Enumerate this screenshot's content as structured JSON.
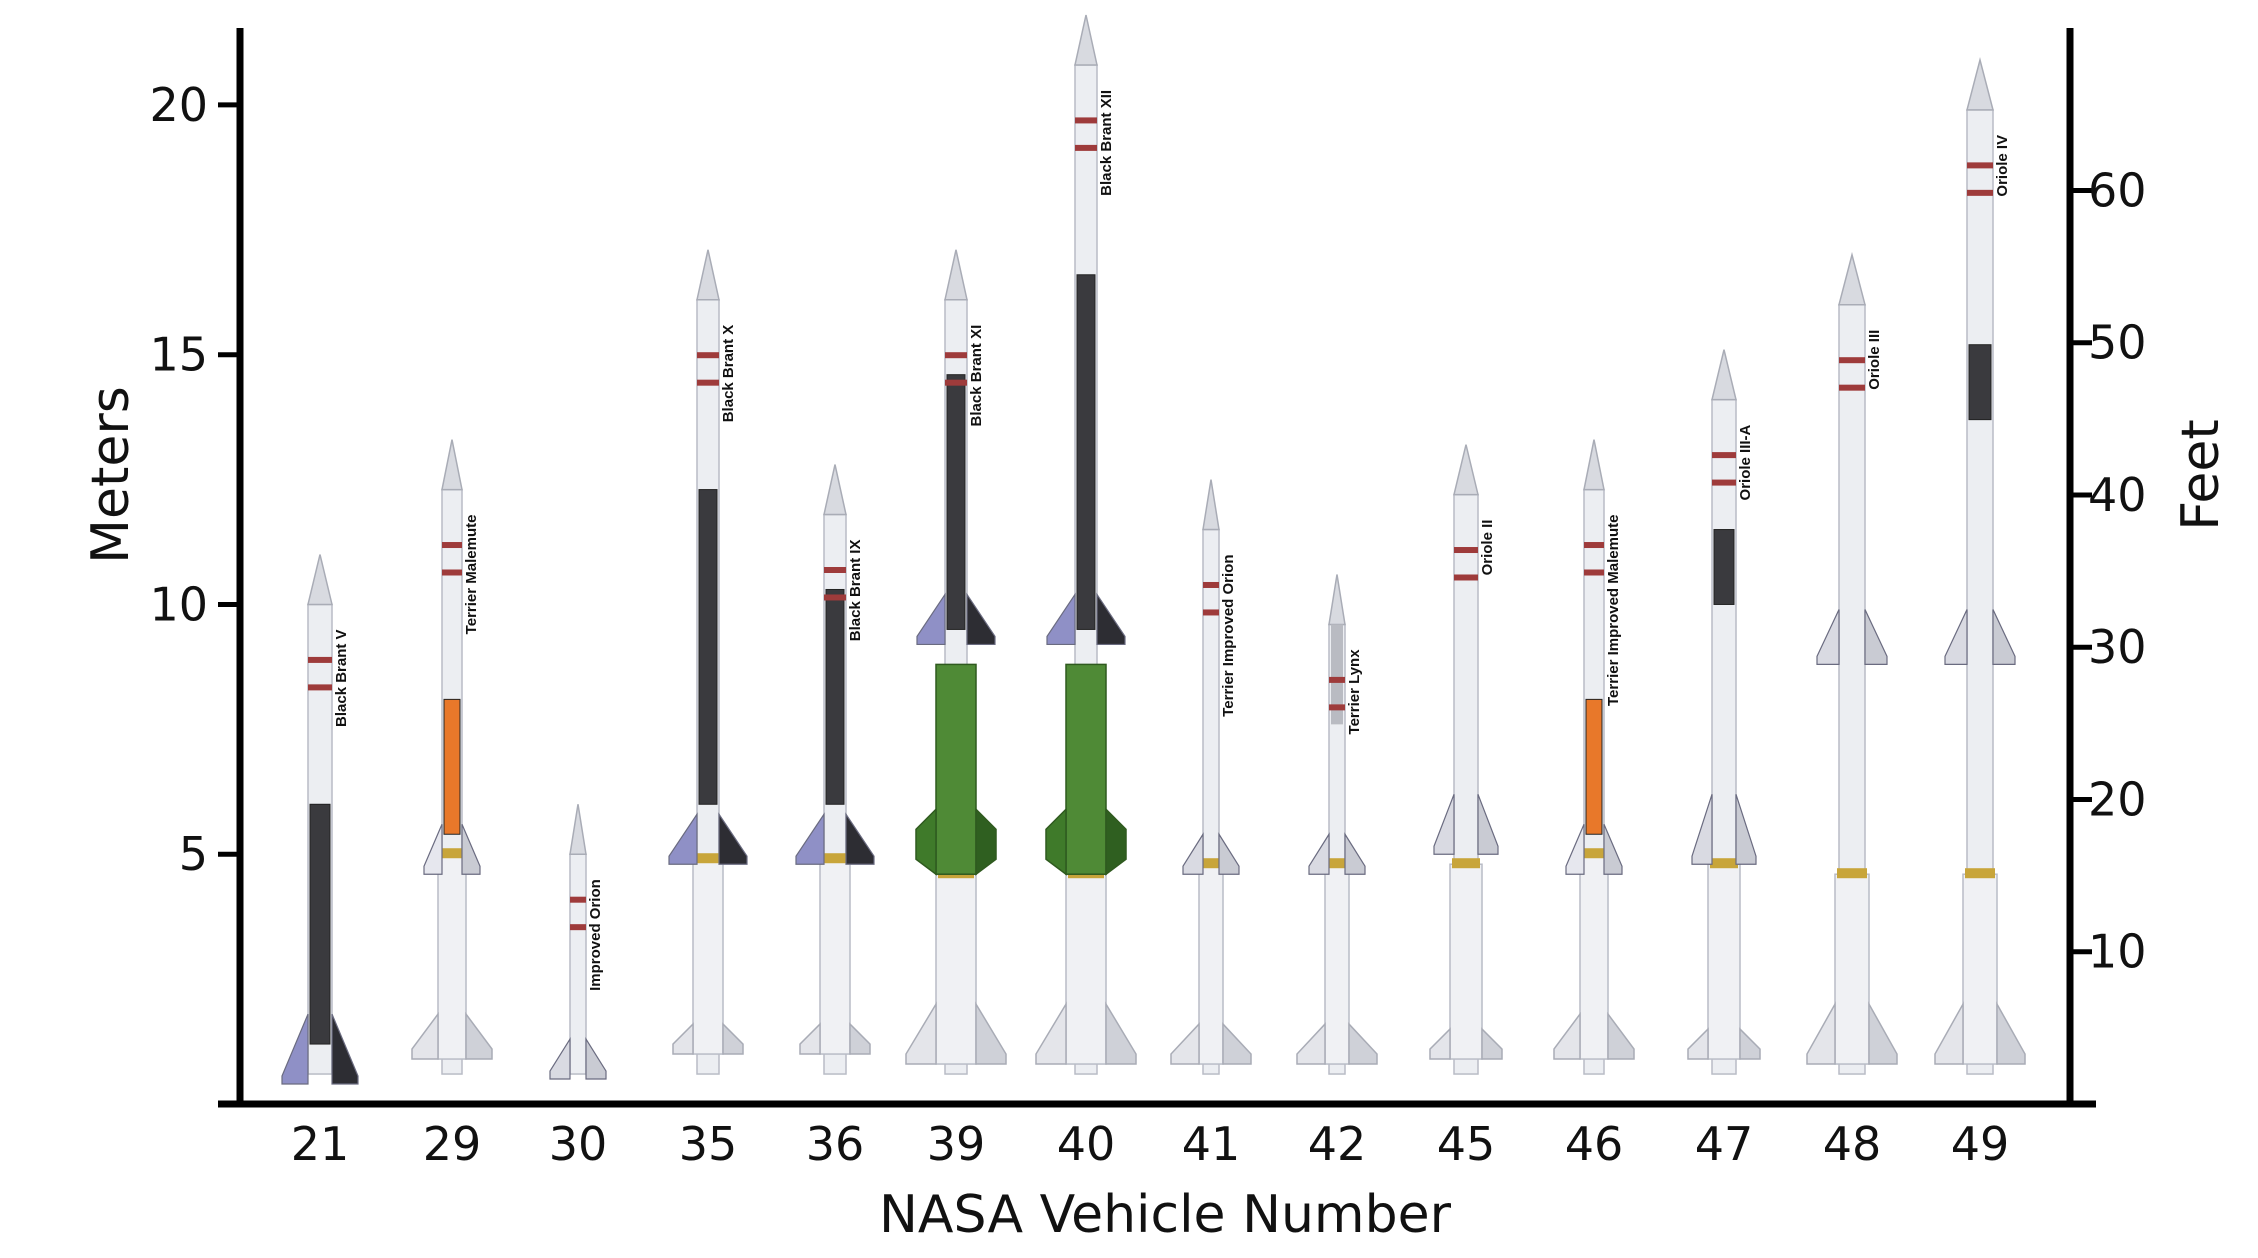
{
  "chart_data": {
    "type": "bar",
    "xlabel": "NASA Vehicle Number",
    "ylabel": "Meters",
    "ylabel_right": "Feet",
    "ylim": [
      0,
      21.5
    ],
    "y_ticks": [
      5,
      10,
      15,
      20
    ],
    "y2_ticks": [
      10,
      20,
      30,
      40,
      50,
      60
    ],
    "categories": [
      "21",
      "29",
      "30",
      "35",
      "36",
      "39",
      "40",
      "41",
      "42",
      "45",
      "46",
      "47",
      "48",
      "49"
    ],
    "rocket_names": [
      "Black Brant V",
      "Terrier Malemute",
      "Improved Orion",
      "Black Brant X",
      "Black Brant IX",
      "Black Brant XI",
      "Black Brant XII",
      "Terrier Improved Orion",
      "Terrier Lynx",
      "Oriole II",
      "Terrier Improved Malemute",
      "Oriole III-A",
      "Oriole III",
      "Oriole IV"
    ],
    "values": [
      11.0,
      13.3,
      6.0,
      17.1,
      12.8,
      17.1,
      21.8,
      12.5,
      10.6,
      13.2,
      13.3,
      15.1,
      17.0,
      20.9
    ],
    "colors": {
      "black_brant": "#3a3a3e",
      "malemute": "#e8782a",
      "terrier": "#4f8a36",
      "fin": "#8f90c6",
      "body": "#eceef2",
      "stripe": "#9e3b3b",
      "band": "#c8a53a"
    }
  }
}
